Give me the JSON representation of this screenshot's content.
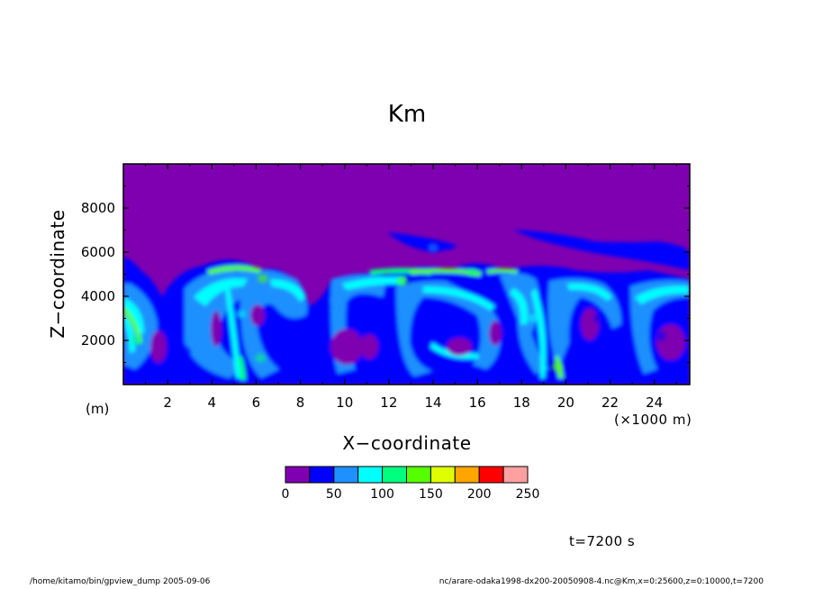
{
  "title": "Km",
  "xlabel": "X−coordinate",
  "ylabel": "Z−coordinate",
  "x_unit": "(×1000 m)",
  "z_unit": "(m)",
  "time_label": "t=7200 s",
  "footer_left": "/home/kitamo/bin/gpview_dump  2005-09-06",
  "footer_right": "nc/arare-odaka1998-dx200-20050908-4.nc@Km,x=0:25600,z=0:10000,t=7200",
  "colors": {
    "bins": [
      "#7f00b0",
      "#0000ff",
      "#1e90ff",
      "#00ffff",
      "#00ff7f",
      "#55ff00",
      "#dfff00",
      "#ffa500",
      "#ff0000",
      "#ffa0a0"
    ],
    "background_level": "#7f00b0"
  },
  "chart_data": {
    "type": "heatmap",
    "title": "Km",
    "xlabel": "X−coordinate",
    "ylabel": "Z−coordinate",
    "xlim": [
      0,
      25.6
    ],
    "ylim": [
      0,
      10000
    ],
    "x_ticks": [
      2,
      4,
      6,
      8,
      10,
      12,
      14,
      16,
      18,
      20,
      22,
      24
    ],
    "y_ticks": [
      2000,
      4000,
      6000,
      8000
    ],
    "colorbar": {
      "levels": [
        0,
        25,
        50,
        75,
        100,
        125,
        150,
        175,
        200,
        225,
        250
      ],
      "tick_labels": [
        0,
        50,
        100,
        150,
        200,
        250
      ]
    },
    "features": [
      {
        "x": 0.6,
        "z": 2000,
        "level": 100
      },
      {
        "x": 2.8,
        "z": 1500,
        "level": 25
      },
      {
        "x": 5.3,
        "z": 3200,
        "level": 75
      },
      {
        "x": 6.3,
        "z": 4800,
        "level": 125
      },
      {
        "x": 6.2,
        "z": 1200,
        "level": 100
      },
      {
        "x": 9.6,
        "z": 3800,
        "level": 50
      },
      {
        "x": 11.2,
        "z": 2600,
        "level": 25
      },
      {
        "x": 12.6,
        "z": 4700,
        "level": 125
      },
      {
        "x": 14.0,
        "z": 6200,
        "level": 50
      },
      {
        "x": 15.8,
        "z": 5100,
        "level": 100
      },
      {
        "x": 14.2,
        "z": 2600,
        "level": 25
      },
      {
        "x": 18.5,
        "z": 3000,
        "level": 75
      },
      {
        "x": 19.6,
        "z": 800,
        "level": 125
      },
      {
        "x": 21.5,
        "z": 3000,
        "level": 25
      },
      {
        "x": 24.3,
        "z": 2200,
        "level": 25
      },
      {
        "x": 22.5,
        "z": 6200,
        "level": 25
      }
    ]
  }
}
